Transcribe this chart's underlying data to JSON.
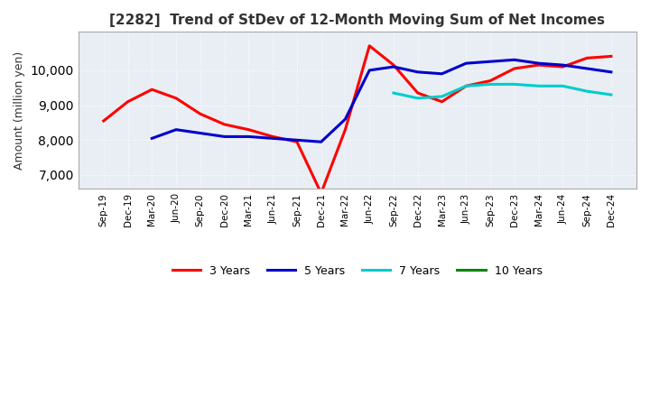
{
  "title": "[2282]  Trend of StDev of 12-Month Moving Sum of Net Incomes",
  "ylabel": "Amount (million yen)",
  "ylim": [
    6600,
    11100
  ],
  "yticks": [
    7000,
    8000,
    9000,
    10000
  ],
  "background_color": "#ffffff",
  "plot_bg_color": "#e8eef4",
  "grid_color": "#ffffff",
  "grid_style": "dotted",
  "x_labels": [
    "Sep-19",
    "Dec-19",
    "Mar-20",
    "Jun-20",
    "Sep-20",
    "Dec-20",
    "Mar-21",
    "Jun-21",
    "Sep-21",
    "Dec-21",
    "Mar-22",
    "Jun-22",
    "Sep-22",
    "Dec-22",
    "Mar-23",
    "Jun-23",
    "Sep-23",
    "Dec-23",
    "Mar-24",
    "Jun-24",
    "Sep-24",
    "Dec-24"
  ],
  "series": {
    "3 Years": {
      "color": "#ff0000",
      "data": [
        8550,
        9100,
        9450,
        9200,
        8750,
        8450,
        8300,
        8100,
        7950,
        6480,
        8300,
        10700,
        10150,
        9350,
        9100,
        9550,
        9700,
        10050,
        10150,
        10100,
        10350,
        10400
      ]
    },
    "5 Years": {
      "color": "#0000cc",
      "data": [
        null,
        null,
        8050,
        8300,
        8200,
        8100,
        8100,
        8050,
        8000,
        7950,
        8600,
        10000,
        10100,
        9950,
        9900,
        10200,
        10250,
        10300,
        10200,
        10150,
        10050,
        9950
      ]
    },
    "7 Years": {
      "color": "#00cccc",
      "data": [
        null,
        null,
        null,
        null,
        null,
        null,
        null,
        null,
        null,
        null,
        null,
        null,
        9350,
        9200,
        9250,
        9550,
        9600,
        9600,
        9550,
        9550,
        9400,
        9300
      ]
    },
    "10 Years": {
      "color": "#008800",
      "data": [
        null,
        null,
        null,
        null,
        null,
        null,
        null,
        null,
        null,
        null,
        null,
        null,
        null,
        null,
        null,
        null,
        null,
        null,
        null,
        null,
        null,
        null
      ]
    }
  },
  "legend_order": [
    "3 Years",
    "5 Years",
    "7 Years",
    "10 Years"
  ]
}
